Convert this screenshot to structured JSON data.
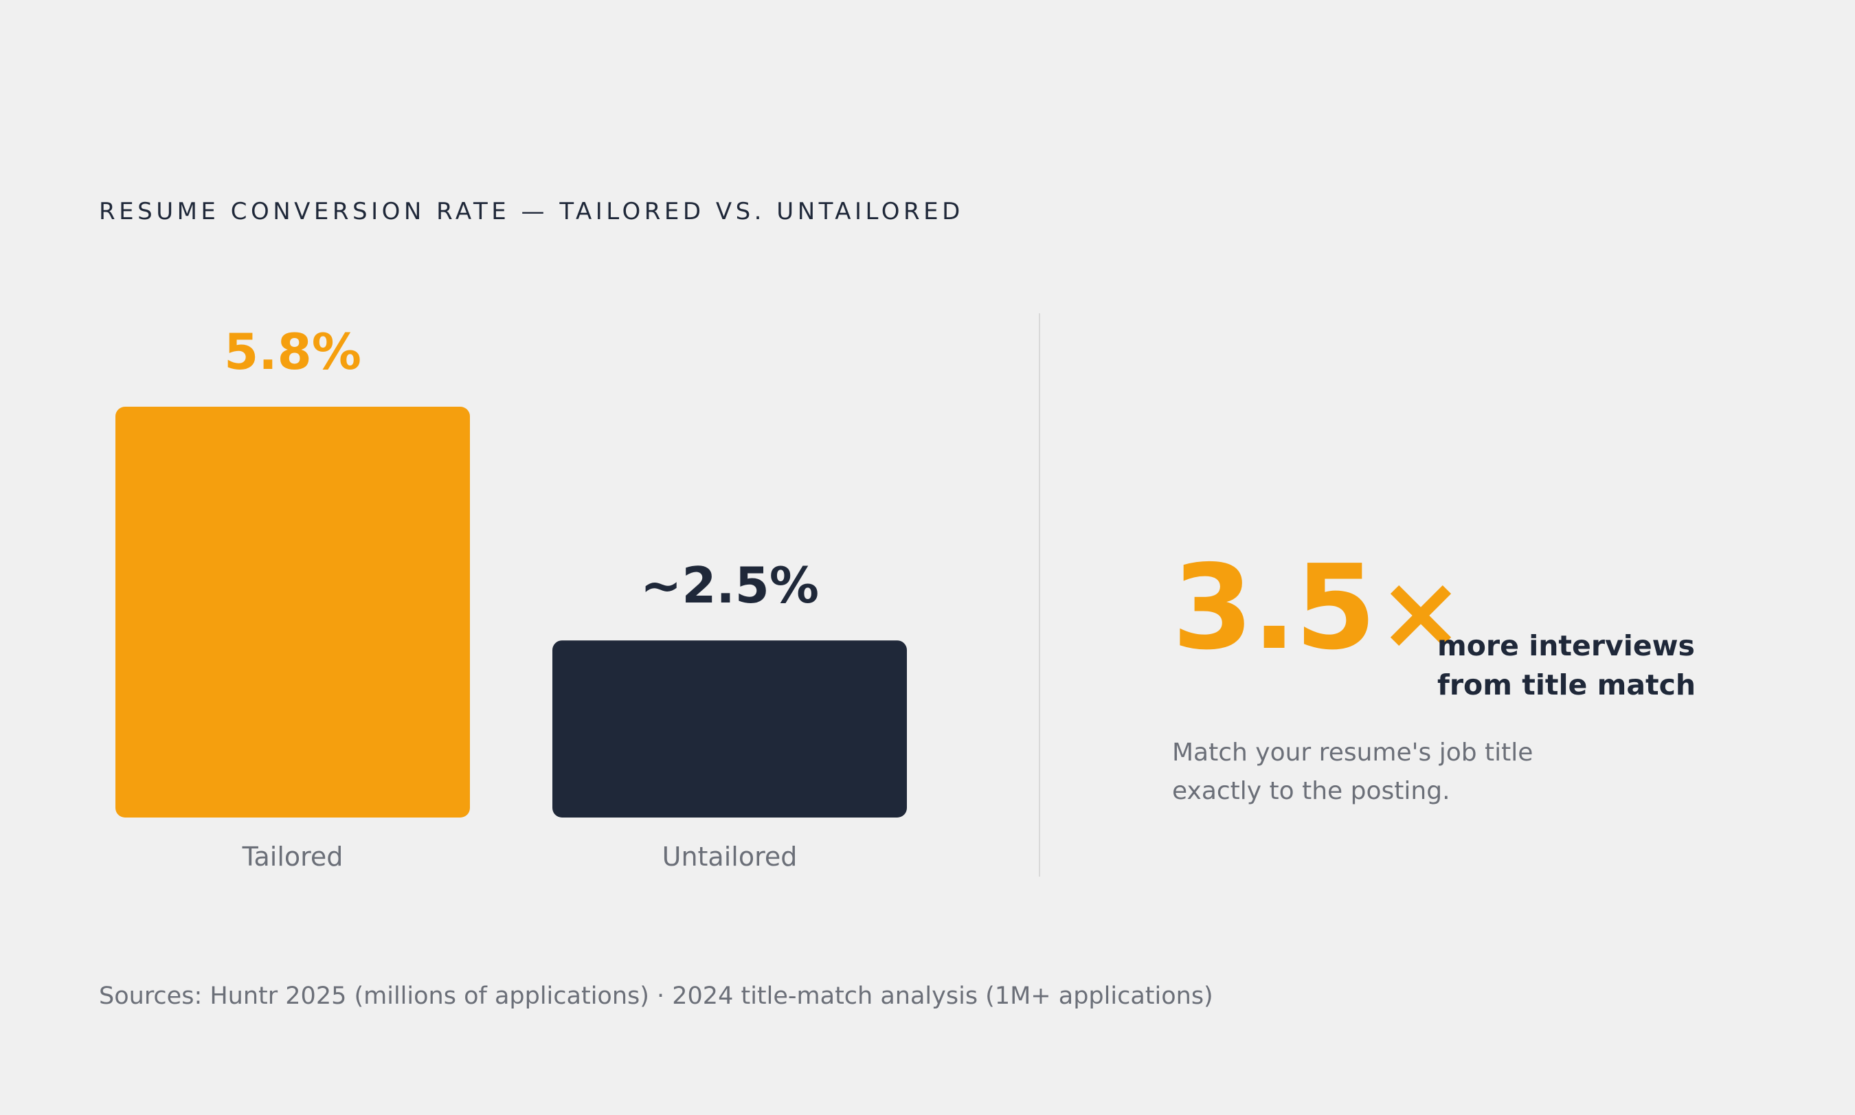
{
  "chart_data": {
    "type": "bar",
    "title": "RESUME CONVERSION RATE — TAILORED VS. UNTAILORED",
    "categories": [
      "Tailored",
      "Untailored"
    ],
    "values": [
      5.8,
      2.5
    ],
    "data_labels": [
      "5.8%",
      "~2.5%"
    ],
    "unit": "%",
    "ylim": [
      0,
      5.8
    ],
    "grid": false,
    "bar_colors": [
      "#f59f0e",
      "#1f2839"
    ],
    "label_colors": [
      "#f59f0e",
      "#1f2839"
    ]
  },
  "callout": {
    "value": "3.5",
    "symbol": "×",
    "caption_line1": "more interviews",
    "caption_line2": "from title match",
    "note_line1": "Match your resume's job title",
    "note_line2": "exactly to the posting."
  },
  "sources": "Sources: Huntr 2025 (millions of applications) · 2024 title-match analysis (1M+ applications)",
  "colors": {
    "accent": "#f59f0e",
    "dark": "#1f2839",
    "muted": "#6b6f78",
    "background": "#f0f0f0"
  }
}
